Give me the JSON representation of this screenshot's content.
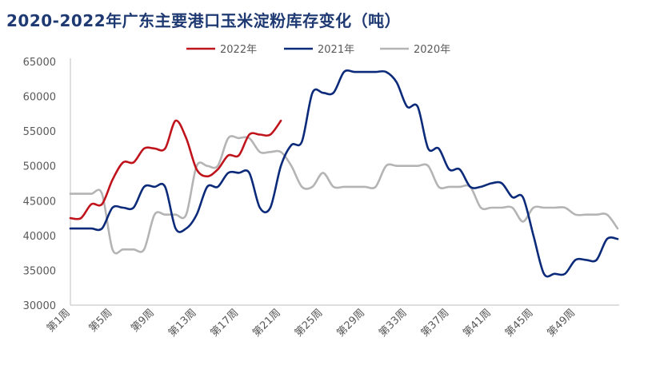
{
  "chart_data": {
    "type": "line",
    "title": "2020-2022年广东主要港口玉米淀粉库存变化（吨）",
    "xlabel": "",
    "ylabel": "",
    "ylim": [
      30000,
      65000
    ],
    "yticks": [
      30000,
      35000,
      40000,
      45000,
      50000,
      55000,
      60000,
      65000
    ],
    "xtick_labels": [
      "第1周",
      "第5周",
      "第9周",
      "第13周",
      "第17周",
      "第21周",
      "第25周",
      "第29周",
      "第33周",
      "第37周",
      "第41周",
      "第45周",
      "第49周"
    ],
    "legend_position": "top",
    "series": [
      {
        "name": "2022年",
        "color": "#c0141c",
        "values": [
          42500,
          42500,
          44500,
          44500,
          48000,
          50500,
          50500,
          52500,
          52500,
          52500,
          56500,
          54000,
          49500,
          48500,
          49500,
          51500,
          51500,
          54500,
          54500,
          54500,
          56500
        ]
      },
      {
        "name": "2021年",
        "color": "#0c2a7a",
        "values": [
          41000,
          41000,
          41000,
          41000,
          44000,
          44000,
          44000,
          47000,
          47000,
          47000,
          41000,
          41000,
          43000,
          47000,
          47000,
          49000,
          49000,
          49000,
          44000,
          44000,
          50000,
          53000,
          53500,
          60500,
          60500,
          60500,
          63500,
          63500,
          63500,
          63500,
          63500,
          62000,
          58500,
          58500,
          52500,
          52500,
          49500,
          49500,
          47000,
          47000,
          47500,
          47500,
          45500,
          45500,
          40000,
          34500,
          34500,
          34500,
          36500,
          36500,
          36500,
          39500,
          39500
        ]
      },
      {
        "name": "2020年",
        "color": "#b4b4b4",
        "values": [
          46000,
          46000,
          46000,
          46000,
          38000,
          38000,
          38000,
          38000,
          43000,
          43000,
          43000,
          43000,
          50000,
          50000,
          50000,
          54000,
          54000,
          54000,
          52000,
          52000,
          52000,
          50000,
          47000,
          47000,
          49000,
          47000,
          47000,
          47000,
          47000,
          47000,
          50000,
          50000,
          50000,
          50000,
          50000,
          47000,
          47000,
          47000,
          47000,
          44000,
          44000,
          44000,
          44000,
          42000,
          44000,
          44000,
          44000,
          44000,
          43000,
          43000,
          43000,
          43000,
          41000
        ]
      }
    ]
  }
}
